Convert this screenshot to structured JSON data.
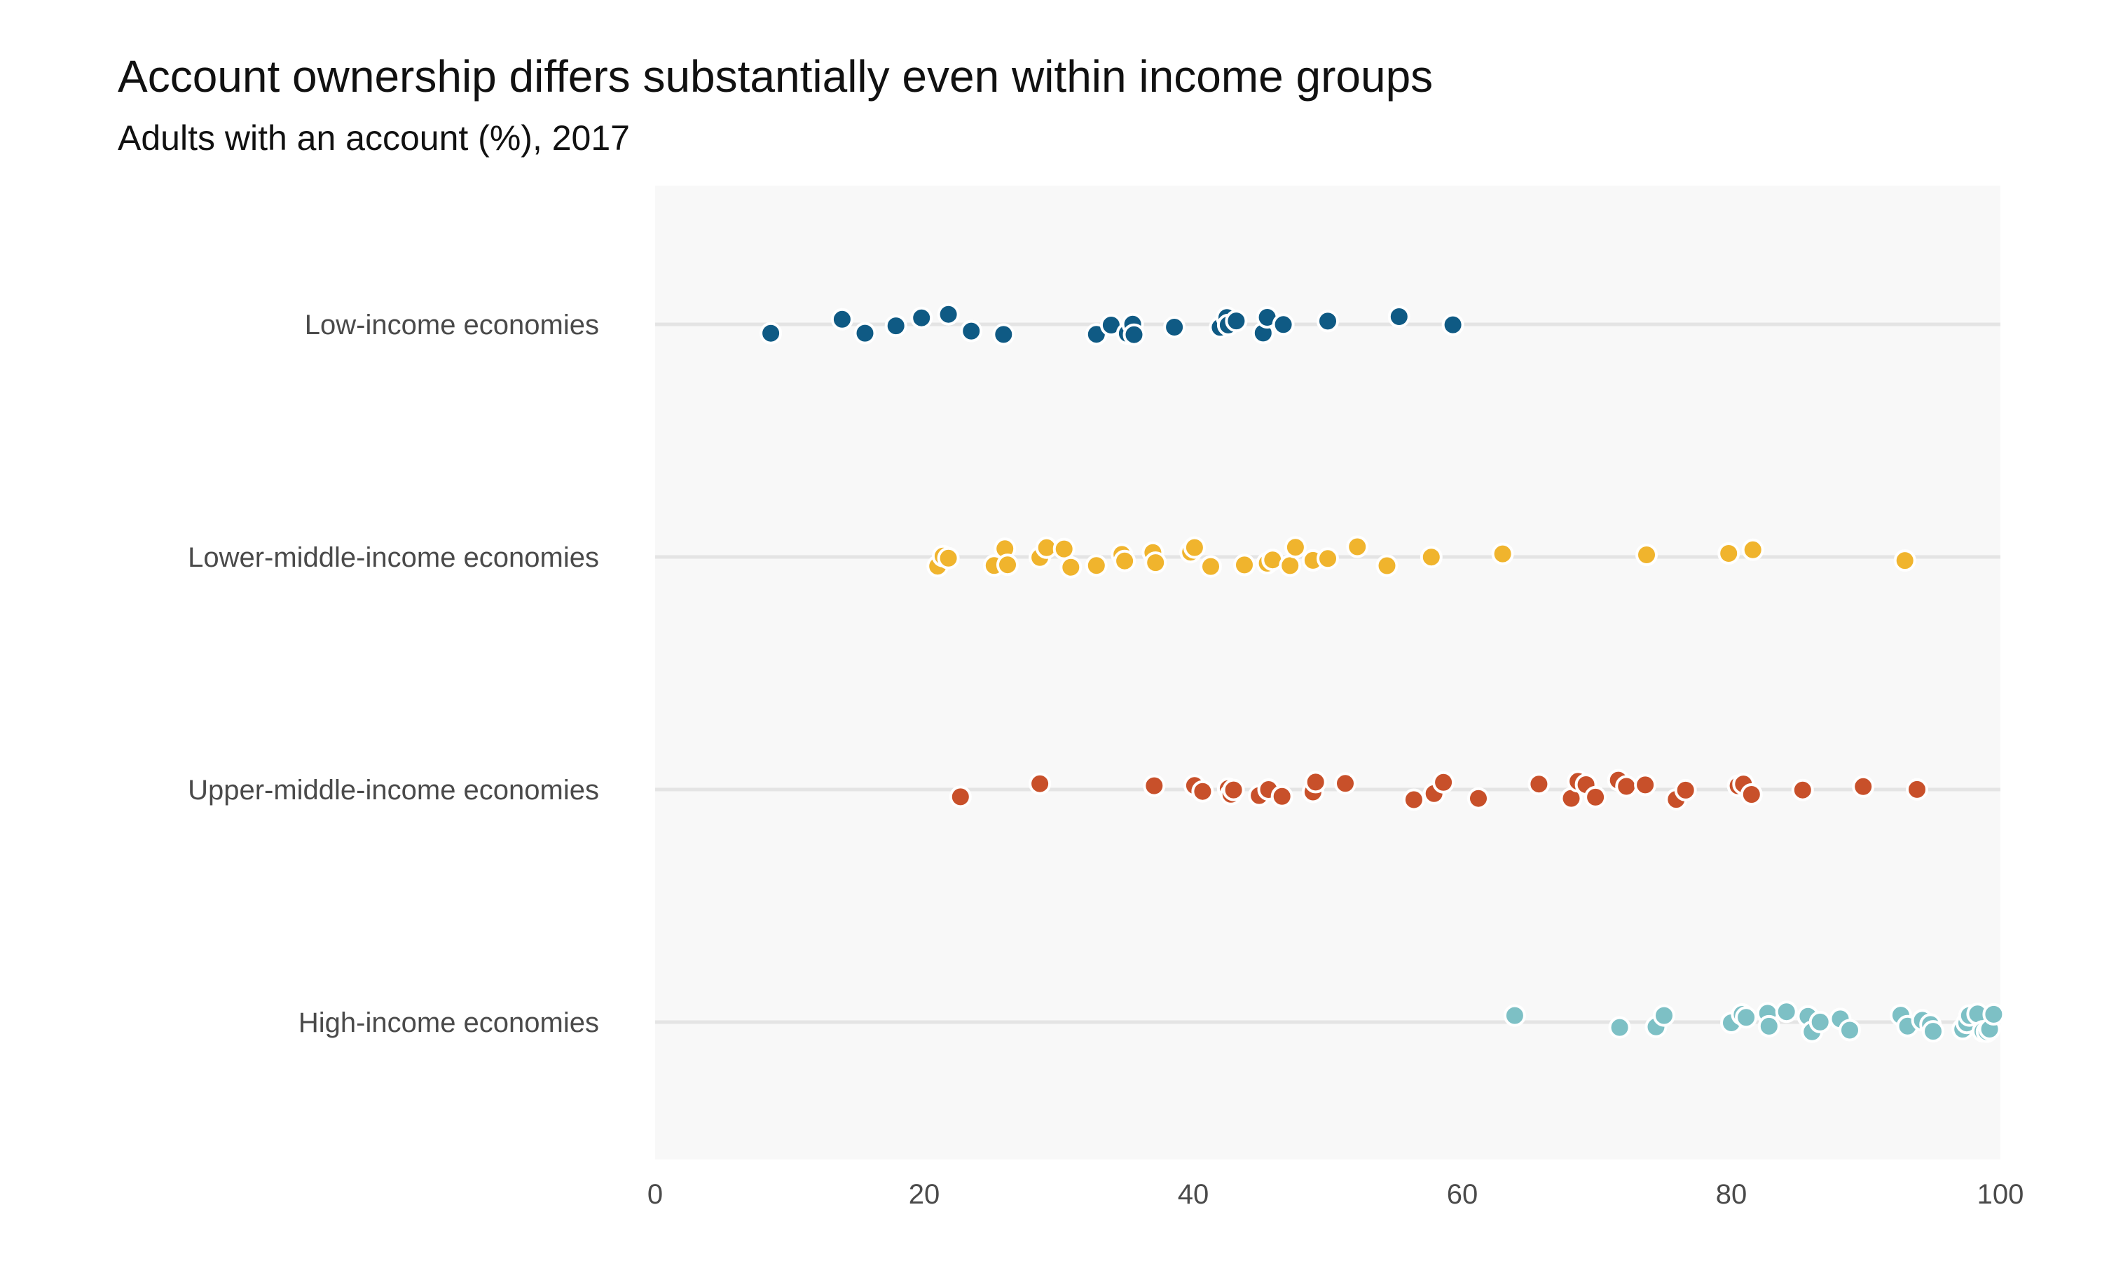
{
  "chart_data": {
    "type": "scatter",
    "title": "Account ownership differs substantially even within income groups",
    "subtitle": "Adults with an account (%), 2017",
    "xlim": [
      0,
      100
    ],
    "x_ticks": [
      "0",
      "20",
      "40",
      "60",
      "80",
      "100"
    ],
    "grid": true,
    "legend": "none",
    "categories": [
      "Low-income economies",
      "Lower-middle-income economies",
      "Upper-middle-income economies",
      "High-income economies"
    ],
    "series": [
      {
        "color": "#0f5a84",
        "values": [
          8.6,
          13.9,
          15.6,
          17.9,
          19.8,
          21.8,
          23.5,
          25.9,
          32.8,
          33.9,
          35.1,
          35.5,
          35.6,
          38.6,
          42.0,
          42.5,
          42.6,
          43.2,
          45.2,
          45.5,
          46.7,
          50.0,
          55.3,
          59.3
        ]
      },
      {
        "color": "#f0b42d",
        "values": [
          21.0,
          21.4,
          21.8,
          25.2,
          26.0,
          26.2,
          28.6,
          29.1,
          30.4,
          30.9,
          32.8,
          34.7,
          34.9,
          37.0,
          37.2,
          39.8,
          40.1,
          41.3,
          43.8,
          45.5,
          45.9,
          47.2,
          47.6,
          48.9,
          50.0,
          52.2,
          54.4,
          57.7,
          63.0,
          73.7,
          79.8,
          81.6,
          92.9
        ]
      },
      {
        "color": "#c8502a",
        "values": [
          22.7,
          28.6,
          37.1,
          40.1,
          40.7,
          42.6,
          42.8,
          43.0,
          44.9,
          45.6,
          46.6,
          48.9,
          49.1,
          51.3,
          56.4,
          57.9,
          58.6,
          61.2,
          65.7,
          68.1,
          68.6,
          69.2,
          69.9,
          71.6,
          72.2,
          73.6,
          75.9,
          76.6,
          80.5,
          80.9,
          81.5,
          85.3,
          89.8,
          93.8
        ]
      },
      {
        "color": "#7dc0c5",
        "values": [
          63.9,
          71.7,
          74.4,
          75.0,
          80.0,
          80.8,
          81.1,
          82.7,
          82.8,
          84.1,
          85.7,
          86.0,
          86.6,
          88.1,
          88.8,
          92.6,
          93.1,
          94.2,
          94.8,
          95.0,
          97.2,
          97.5,
          97.7,
          98.3,
          98.7,
          99.0,
          99.2,
          99.5
        ]
      }
    ]
  }
}
